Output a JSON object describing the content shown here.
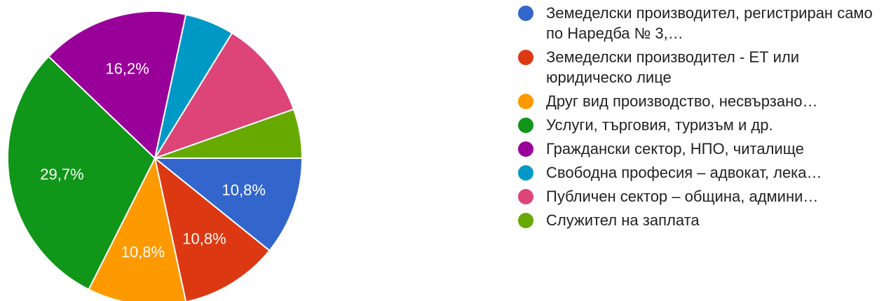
{
  "chart_data": {
    "type": "pie",
    "labels": [
      "Земеделски производител, регистриран само по Наредба № 3,…",
      "Земеделски производител - ЕТ или юридическо лице",
      "Друг вид производство, несвързано…",
      "Услуги, търговия, туризъм и др.",
      "Граждански сектор, НПО, читалище",
      "Свободна професия – адвокат, лека…",
      "Публичен сектор – община, админи…",
      "Служител на заплата"
    ],
    "values": [
      10.8,
      10.8,
      10.8,
      29.7,
      16.2,
      5.4,
      10.8,
      5.4
    ],
    "value_labels": [
      "10,8%",
      "10,8%",
      "10,8%",
      "29,7%",
      "16,2%",
      "",
      "",
      ""
    ],
    "colors": [
      "#3366cc",
      "#dc3912",
      "#ff9900",
      "#109618",
      "#990099",
      "#0099c6",
      "#dd4477",
      "#66aa00"
    ],
    "start_angle_deg": 90,
    "direction": "clockwise",
    "legend_position": "right"
  }
}
